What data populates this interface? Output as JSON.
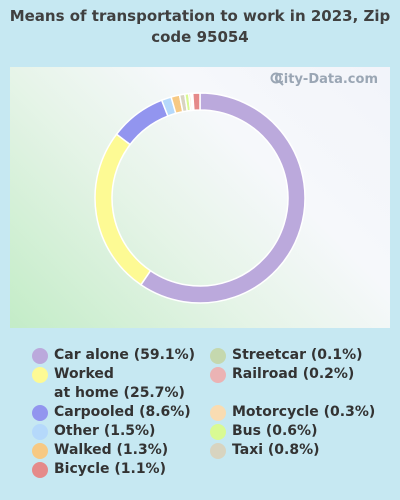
{
  "title": "Means of transportation to work in 2023, Zip code 95054",
  "watermark": "City-Data.com",
  "chart_data": {
    "type": "pie",
    "style": "donut",
    "title": "Means of transportation to work in 2023, Zip code 95054",
    "slices": [
      {
        "label": "Car alone (59.1%)",
        "name": "Car alone",
        "value": 59.1,
        "color": "#bba9dc"
      },
      {
        "label": "Worked\nat home (25.7%)",
        "name": "Worked at home",
        "value": 25.7,
        "color": "#fdfa94"
      },
      {
        "label": "Carpooled (8.6%)",
        "name": "Carpooled",
        "value": 8.6,
        "color": "#9295ef"
      },
      {
        "label": "Other (1.5%)",
        "name": "Other",
        "value": 1.5,
        "color": "#b5d9fb"
      },
      {
        "label": "Walked (1.3%)",
        "name": "Walked",
        "value": 1.3,
        "color": "#f7c983"
      },
      {
        "label": "Bicycle (1.1%)",
        "name": "Bicycle",
        "value": 1.1,
        "color": "#e58a8a"
      },
      {
        "label": "Streetcar (0.1%)",
        "name": "Streetcar",
        "value": 0.1,
        "color": "#c5d8ae"
      },
      {
        "label": "Railroad (0.2%)",
        "name": "Railroad",
        "value": 0.2,
        "color": "#ebb3b4"
      },
      {
        "label": "Motorcycle (0.3%)",
        "name": "Motorcycle",
        "value": 0.3,
        "color": "#f9dcb2"
      },
      {
        "label": "Bus (0.6%)",
        "name": "Bus",
        "value": 0.6,
        "color": "#d9fa93"
      },
      {
        "label": "Taxi (0.8%)",
        "name": "Taxi",
        "value": 0.8,
        "color": "#d8d4c0"
      }
    ],
    "slice_order": [
      "Car alone",
      "Worked at home",
      "Carpooled",
      "Other",
      "Walked",
      "Taxi",
      "Bus",
      "Motorcycle",
      "Railroad",
      "Streetcar",
      "Bicycle"
    ],
    "legend_placement": "bottom"
  }
}
